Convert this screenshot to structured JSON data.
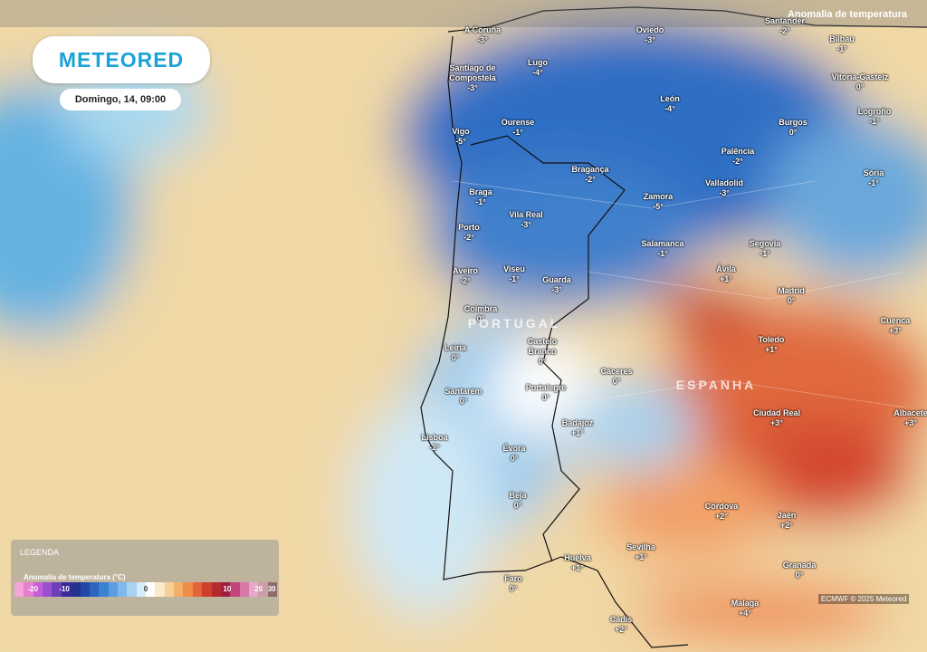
{
  "header": {
    "logo": "METEORED",
    "date": "Domingo, 14, 09:00",
    "layer": "Anomalia de temperatura"
  },
  "countries": [
    "PORTUGAL",
    "ESPANHA"
  ],
  "cities": [
    {
      "name": "A Coruña",
      "value": "-3°"
    },
    {
      "name": "Oviedo",
      "value": "-3°"
    },
    {
      "name": "Santander",
      "value": "-2°"
    },
    {
      "name": "Bilbau",
      "value": "-1°"
    },
    {
      "name": "Lugo",
      "value": "-4°"
    },
    {
      "name": "Santiago de Compostela",
      "value": "-3°"
    },
    {
      "name": "Vitoria-Gasteiz",
      "value": "0°"
    },
    {
      "name": "León",
      "value": "-4°"
    },
    {
      "name": "Logroño",
      "value": "-1°"
    },
    {
      "name": "Vigo",
      "value": "-5°"
    },
    {
      "name": "Ourense",
      "value": "-1°"
    },
    {
      "name": "Burgos",
      "value": "0°"
    },
    {
      "name": "Palência",
      "value": "-2°"
    },
    {
      "name": "Bragança",
      "value": "-2°"
    },
    {
      "name": "Sória",
      "value": "-1°"
    },
    {
      "name": "Valladolid",
      "value": "-3°"
    },
    {
      "name": "Braga",
      "value": "-1°"
    },
    {
      "name": "Zamora",
      "value": "-5°"
    },
    {
      "name": "Vila Real",
      "value": "-3°"
    },
    {
      "name": "Porto",
      "value": "-2°"
    },
    {
      "name": "Salamanca",
      "value": "-1°"
    },
    {
      "name": "Segovia",
      "value": "-1°"
    },
    {
      "name": "Aveiro",
      "value": "-2°"
    },
    {
      "name": "Viseu",
      "value": "-1°"
    },
    {
      "name": "Ávila",
      "value": "+1°"
    },
    {
      "name": "Guarda",
      "value": "-3°"
    },
    {
      "name": "Madrid",
      "value": "0°"
    },
    {
      "name": "Coimbra",
      "value": "0°"
    },
    {
      "name": "Cuenca",
      "value": "+3°"
    },
    {
      "name": "Castelo Branco",
      "value": "0°"
    },
    {
      "name": "Toledo",
      "value": "+1°"
    },
    {
      "name": "Leiria",
      "value": "0°"
    },
    {
      "name": "Cáceres",
      "value": "0°"
    },
    {
      "name": "Santarém",
      "value": "0°"
    },
    {
      "name": "Portalegre",
      "value": "0°"
    },
    {
      "name": "Ciudad Real",
      "value": "+3°"
    },
    {
      "name": "Albacete",
      "value": "+3°"
    },
    {
      "name": "Badajoz",
      "value": "+1°"
    },
    {
      "name": "Lisboa",
      "value": "-2°"
    },
    {
      "name": "Évora",
      "value": "0°"
    },
    {
      "name": "Beja",
      "value": "0°"
    },
    {
      "name": "Córdova",
      "value": "+2°"
    },
    {
      "name": "Jaén",
      "value": "+2°"
    },
    {
      "name": "Sevilha",
      "value": "+1°"
    },
    {
      "name": "Huelva",
      "value": "+1°"
    },
    {
      "name": "Granada",
      "value": "0°"
    },
    {
      "name": "Faro",
      "value": "0°"
    },
    {
      "name": "Malaga",
      "value": "+4°"
    },
    {
      "name": "Cádis",
      "value": "+2°"
    }
  ],
  "legend": {
    "title": "LEGENDA",
    "subtitle": "Anomalia de temperatura (°C)",
    "ticks": [
      "-20",
      "-10",
      "0",
      "10",
      "20",
      "30"
    ]
  },
  "credit": "ECMWF © 2025 Meteored"
}
